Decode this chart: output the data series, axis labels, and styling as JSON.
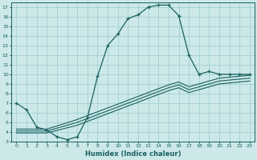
{
  "xlabel": "Humidex (Indice chaleur)",
  "xlim": [
    -0.5,
    23.5
  ],
  "ylim": [
    3,
    17.5
  ],
  "xticks": [
    0,
    1,
    2,
    3,
    4,
    5,
    6,
    7,
    8,
    9,
    10,
    11,
    12,
    13,
    14,
    15,
    16,
    17,
    18,
    19,
    20,
    21,
    22,
    23
  ],
  "yticks": [
    3,
    4,
    5,
    6,
    7,
    8,
    9,
    10,
    11,
    12,
    13,
    14,
    15,
    16,
    17
  ],
  "bg_color": "#cce8e8",
  "grid_color": "#99cccc",
  "line_color": "#1a6060",
  "line1_x": [
    0,
    1,
    2,
    3,
    4,
    5,
    6,
    7,
    8,
    9,
    10,
    11,
    12,
    13,
    14,
    15,
    16,
    17,
    18,
    19,
    20,
    21,
    22,
    23
  ],
  "line1_y": [
    7.0,
    6.3,
    4.5,
    4.2,
    3.5,
    3.2,
    3.5,
    5.5,
    9.8,
    13.0,
    14.2,
    15.8,
    16.2,
    17.0,
    17.2,
    17.2,
    16.1,
    12.0,
    10.0,
    10.3,
    10.0,
    10.0,
    10.0,
    10.0
  ],
  "line2_x": [
    0,
    3,
    6,
    7,
    8,
    9,
    10,
    11,
    12,
    13,
    14,
    15,
    16,
    17,
    18,
    19,
    20,
    21,
    22,
    23
  ],
  "line2_y": [
    4.3,
    4.3,
    5.3,
    5.7,
    6.1,
    6.5,
    6.9,
    7.3,
    7.7,
    8.1,
    8.5,
    8.9,
    9.2,
    8.7,
    9.0,
    9.3,
    9.6,
    9.7,
    9.8,
    9.9
  ],
  "line3_x": [
    0,
    3,
    6,
    7,
    8,
    9,
    10,
    11,
    12,
    13,
    14,
    15,
    16,
    17,
    18,
    19,
    20,
    21,
    22,
    23
  ],
  "line3_y": [
    4.1,
    4.1,
    5.0,
    5.4,
    5.8,
    6.2,
    6.6,
    7.0,
    7.4,
    7.8,
    8.2,
    8.6,
    8.9,
    8.4,
    8.7,
    9.0,
    9.3,
    9.4,
    9.5,
    9.6
  ],
  "line4_x": [
    0,
    3,
    6,
    7,
    8,
    9,
    10,
    11,
    12,
    13,
    14,
    15,
    16,
    17,
    18,
    19,
    20,
    21,
    22,
    23
  ],
  "line4_y": [
    3.9,
    3.9,
    4.7,
    5.1,
    5.5,
    5.9,
    6.3,
    6.7,
    7.1,
    7.5,
    7.9,
    8.3,
    8.6,
    8.1,
    8.4,
    8.7,
    9.0,
    9.1,
    9.2,
    9.3
  ]
}
